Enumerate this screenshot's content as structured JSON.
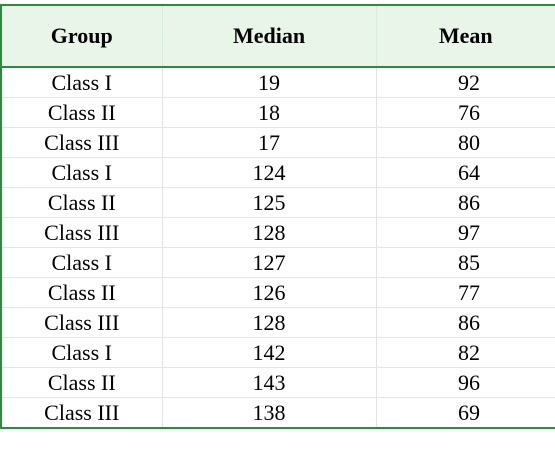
{
  "table": {
    "headers": [
      "Group",
      "Median",
      "Mean"
    ],
    "rows": [
      {
        "group": "Class I",
        "median": "19",
        "mean": "92"
      },
      {
        "group": "Class II",
        "median": "18",
        "mean": "76"
      },
      {
        "group": "Class III",
        "median": "17",
        "mean": "80"
      },
      {
        "group": "Class I",
        "median": "124",
        "mean": "64"
      },
      {
        "group": "Class II",
        "median": "125",
        "mean": "86"
      },
      {
        "group": "Class III",
        "median": "128",
        "mean": "97"
      },
      {
        "group": "Class I",
        "median": "127",
        "mean": "85"
      },
      {
        "group": "Class II",
        "median": "126",
        "mean": "77"
      },
      {
        "group": "Class III",
        "median": "128",
        "mean": "86"
      },
      {
        "group": "Class I",
        "median": "142",
        "mean": "82"
      },
      {
        "group": "Class II",
        "median": "143",
        "mean": "96"
      },
      {
        "group": "Class III",
        "median": "138",
        "mean": "69"
      }
    ]
  },
  "colors": {
    "border": "#2e8a3e",
    "header_bg": "#e9f5e9"
  }
}
